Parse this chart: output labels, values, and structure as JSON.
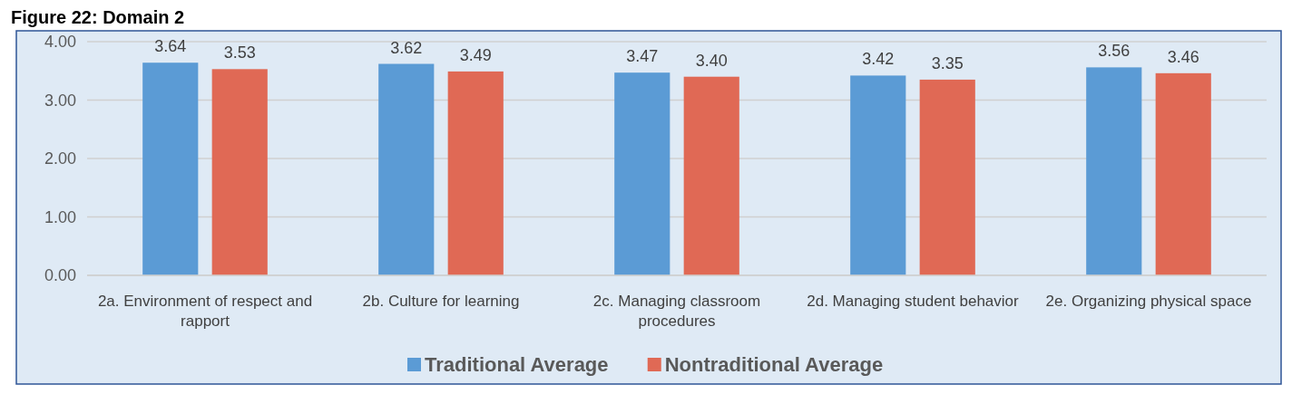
{
  "chart_data": {
    "type": "bar",
    "title": "Figure 22: Domain 2",
    "categories": [
      "2a. Environment of respect and rapport",
      "2b. Culture for learning",
      "2c. Managing classroom procedures",
      "2d. Managing student behavior",
      "2e. Organizing physical space"
    ],
    "series": [
      {
        "name": "Traditional Average",
        "color": "#5b9bd5",
        "values": [
          3.64,
          3.62,
          3.47,
          3.42,
          3.56
        ],
        "value_labels": [
          "3.64",
          "3.62",
          "3.47",
          "3.42",
          "3.56"
        ]
      },
      {
        "name": "Nontraditional Average",
        "color": "#e06955",
        "values": [
          3.53,
          3.49,
          3.4,
          3.35,
          3.46
        ],
        "value_labels": [
          "3.53",
          "3.49",
          "3.40",
          "3.35",
          "3.46"
        ]
      }
    ],
    "ylim": [
      0,
      4
    ],
    "yticks": [
      {
        "value": 0,
        "label": "0.00"
      },
      {
        "value": 1,
        "label": "1.00"
      },
      {
        "value": 2,
        "label": "2.00"
      },
      {
        "value": 3,
        "label": "3.00"
      },
      {
        "value": 4,
        "label": "4.00"
      }
    ],
    "grid": "y",
    "legend": "bottom"
  }
}
